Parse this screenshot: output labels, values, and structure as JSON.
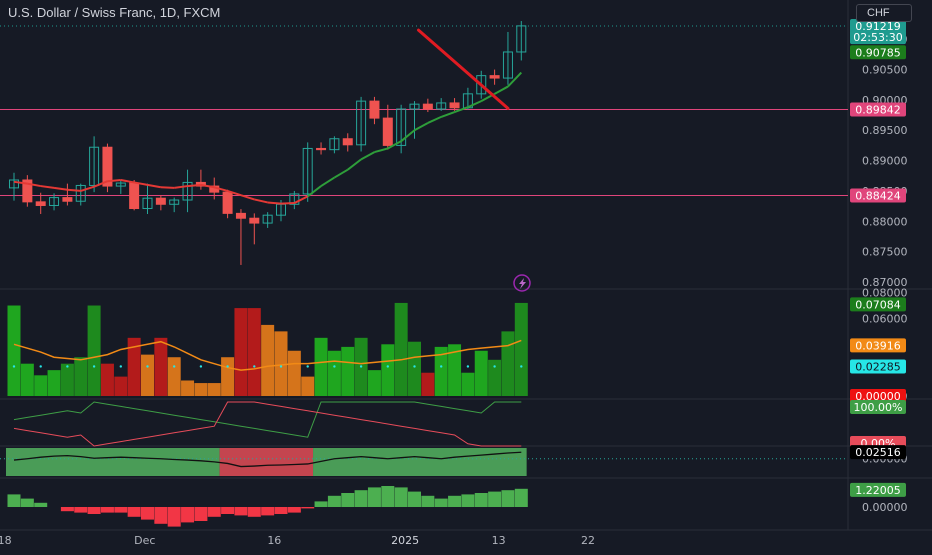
{
  "header": {
    "symbol_title": "U.S. Dollar / Swiss Franc, 1D, FXCM",
    "currency_button": "CHF"
  },
  "colors": {
    "background": "#161a25",
    "up": "#26a69a",
    "down": "#ef5350",
    "ma_red": "#e53935",
    "ma_green": "#2e9e3a",
    "hline": "#e0457b",
    "arrow": "#e01b22",
    "grid_text": "#b2b5be"
  },
  "chart_data": [
    {
      "type": "candlestick",
      "title": "U.S. Dollar / Swiss Franc, 1D, FXCM",
      "y_ticks": [
        "0.87000",
        "0.87500",
        "0.88000",
        "0.88500",
        "0.89000",
        "0.89500",
        "0.90000",
        "0.90500",
        "0.91000"
      ],
      "ylim": [
        0.869,
        0.9135
      ],
      "price_labels": [
        {
          "text": "0.91219",
          "value": 0.91219,
          "color": "#1f9b8f"
        },
        {
          "text": "02:53:30",
          "value": 0.91035,
          "color": "#1f9b8f"
        },
        {
          "text": "0.90785",
          "value": 0.90785,
          "color": "#1c7d1c"
        },
        {
          "text": "0.89842",
          "value": 0.89842,
          "color": "#e0457b"
        },
        {
          "text": "0.88424",
          "value": 0.88424,
          "color": "#e0457b"
        }
      ],
      "horizontal_lines": [
        0.89842,
        0.88424
      ],
      "last_price_line": 0.91219,
      "x_ticks": [
        {
          "label": "18",
          "index": -0.7
        },
        {
          "label": "Dec",
          "index": 9.8
        },
        {
          "label": "16",
          "index": 19.5
        },
        {
          "label": "2025",
          "index": 29.3
        },
        {
          "label": "13",
          "index": 36.3
        },
        {
          "label": "22",
          "index": 43.0
        }
      ],
      "candles": [
        {
          "o": 0.8855,
          "h": 0.888,
          "l": 0.8834,
          "c": 0.8868
        },
        {
          "o": 0.8868,
          "h": 0.8876,
          "l": 0.8824,
          "c": 0.8832
        },
        {
          "o": 0.8832,
          "h": 0.8847,
          "l": 0.8812,
          "c": 0.8826
        },
        {
          "o": 0.8826,
          "h": 0.8846,
          "l": 0.8818,
          "c": 0.8839
        },
        {
          "o": 0.8839,
          "h": 0.8862,
          "l": 0.8826,
          "c": 0.8833
        },
        {
          "o": 0.8833,
          "h": 0.8862,
          "l": 0.8826,
          "c": 0.8859
        },
        {
          "o": 0.8859,
          "h": 0.894,
          "l": 0.8848,
          "c": 0.8922
        },
        {
          "o": 0.8922,
          "h": 0.8928,
          "l": 0.8848,
          "c": 0.8858
        },
        {
          "o": 0.8858,
          "h": 0.8868,
          "l": 0.8845,
          "c": 0.8863
        },
        {
          "o": 0.8863,
          "h": 0.8868,
          "l": 0.8818,
          "c": 0.8821
        },
        {
          "o": 0.8821,
          "h": 0.8862,
          "l": 0.8812,
          "c": 0.8838
        },
        {
          "o": 0.8838,
          "h": 0.8843,
          "l": 0.8818,
          "c": 0.8828
        },
        {
          "o": 0.8828,
          "h": 0.8839,
          "l": 0.8815,
          "c": 0.8835
        },
        {
          "o": 0.8835,
          "h": 0.8885,
          "l": 0.8815,
          "c": 0.8864
        },
        {
          "o": 0.8864,
          "h": 0.8885,
          "l": 0.8852,
          "c": 0.8858
        },
        {
          "o": 0.8858,
          "h": 0.8872,
          "l": 0.8836,
          "c": 0.8848
        },
        {
          "o": 0.8848,
          "h": 0.8852,
          "l": 0.8805,
          "c": 0.8813
        },
        {
          "o": 0.8813,
          "h": 0.882,
          "l": 0.8728,
          "c": 0.8805
        },
        {
          "o": 0.8805,
          "h": 0.8813,
          "l": 0.8762,
          "c": 0.8797
        },
        {
          "o": 0.8797,
          "h": 0.8815,
          "l": 0.8789,
          "c": 0.881
        },
        {
          "o": 0.881,
          "h": 0.8835,
          "l": 0.88,
          "c": 0.8828
        },
        {
          "o": 0.8828,
          "h": 0.885,
          "l": 0.882,
          "c": 0.8845
        },
        {
          "o": 0.8845,
          "h": 0.893,
          "l": 0.8832,
          "c": 0.892
        },
        {
          "o": 0.892,
          "h": 0.893,
          "l": 0.891,
          "c": 0.8918
        },
        {
          "o": 0.8918,
          "h": 0.894,
          "l": 0.8912,
          "c": 0.8936
        },
        {
          "o": 0.8936,
          "h": 0.8945,
          "l": 0.8915,
          "c": 0.8926
        },
        {
          "o": 0.8926,
          "h": 0.9005,
          "l": 0.8915,
          "c": 0.8998
        },
        {
          "o": 0.8998,
          "h": 0.9005,
          "l": 0.896,
          "c": 0.897
        },
        {
          "o": 0.897,
          "h": 0.8992,
          "l": 0.8918,
          "c": 0.8925
        },
        {
          "o": 0.8925,
          "h": 0.8992,
          "l": 0.8912,
          "c": 0.8985
        },
        {
          "o": 0.8985,
          "h": 0.8998,
          "l": 0.8936,
          "c": 0.8993
        },
        {
          "o": 0.8993,
          "h": 0.9002,
          "l": 0.898,
          "c": 0.8985
        },
        {
          "o": 0.8985,
          "h": 0.9003,
          "l": 0.8982,
          "c": 0.8995
        },
        {
          "o": 0.8995,
          "h": 0.9003,
          "l": 0.8982,
          "c": 0.8987
        },
        {
          "o": 0.8987,
          "h": 0.902,
          "l": 0.8984,
          "c": 0.901
        },
        {
          "o": 0.901,
          "h": 0.9048,
          "l": 0.9002,
          "c": 0.904
        },
        {
          "o": 0.904,
          "h": 0.905,
          "l": 0.9025,
          "c": 0.9036
        },
        {
          "o": 0.9036,
          "h": 0.9112,
          "l": 0.9025,
          "c": 0.9079
        },
        {
          "o": 0.9079,
          "h": 0.913,
          "l": 0.9065,
          "c": 0.9122
        }
      ],
      "ma_line": [
        0.8865,
        0.8862,
        0.8858,
        0.8855,
        0.8852,
        0.885,
        0.8857,
        0.8866,
        0.8868,
        0.8864,
        0.886,
        0.8856,
        0.8855,
        0.8858,
        0.886,
        0.8856,
        0.885,
        0.8843,
        0.8836,
        0.8831,
        0.8829,
        0.883,
        0.8841,
        0.8858,
        0.8872,
        0.8885,
        0.8902,
        0.8914,
        0.892,
        0.8932,
        0.895,
        0.8962,
        0.8972,
        0.898,
        0.8988,
        0.8998,
        0.901,
        0.9022,
        0.9045
      ],
      "arrow": {
        "from_index": 30.3,
        "from_value": 0.9115,
        "to_index": 37.0,
        "to_value": 0.8986
      }
    },
    {
      "type": "bar",
      "name": "volatility",
      "y_ticks": [
        "0.08000",
        "0.06000",
        "0.00000"
      ],
      "ylim": [
        0,
        0.082
      ],
      "price_labels": [
        {
          "text": "0.07084",
          "value": 0.07084,
          "color": "#1c7d1c"
        },
        {
          "text": "0.03916",
          "value": 0.03916,
          "color": "#f28a16"
        },
        {
          "text": "0.02285",
          "value": 0.02285,
          "color": "#26e6e6"
        },
        {
          "text": "0.00000",
          "value": 0.0,
          "color": "#ee1111"
        }
      ],
      "values": [
        0.07,
        0.025,
        0.016,
        0.02,
        0.025,
        0.03,
        0.07,
        0.025,
        0.015,
        0.045,
        0.032,
        0.045,
        0.03,
        0.012,
        0.01,
        0.01,
        0.03,
        0.068,
        0.068,
        0.055,
        0.05,
        0.035,
        0.015,
        0.045,
        0.035,
        0.038,
        0.045,
        0.02,
        0.04,
        0.072,
        0.042,
        0.018,
        0.038,
        0.04,
        0.018,
        0.035,
        0.028,
        0.05,
        0.072
      ],
      "bar_colors": [
        "#1fa61f",
        "#1fa61f",
        "#1fa61f",
        "#1fa61f",
        "#1e8a1e",
        "#1e8a1e",
        "#1e8a1e",
        "#b31b1b",
        "#b31b1b",
        "#b31b1b",
        "#d5741b",
        "#b31b1b",
        "#d5741b",
        "#d5741b",
        "#d5741b",
        "#d5741b",
        "#d5741b",
        "#b31b1b",
        "#b31b1b",
        "#d5741b",
        "#d5741b",
        "#d5741b",
        "#d5741b",
        "#1fa61f",
        "#1fa61f",
        "#1fa61f",
        "#1e8a1e",
        "#1fa61f",
        "#1fa61f",
        "#1e8a1e",
        "#1e8a1e",
        "#b31b1b",
        "#1fa61f",
        "#1fa61f",
        "#1fa61f",
        "#1fa61f",
        "#1e8a1e",
        "#1e8a1e",
        "#1e8a1e"
      ],
      "signal_line": [
        0.04,
        0.037,
        0.034,
        0.03,
        0.029,
        0.028,
        0.03,
        0.032,
        0.036,
        0.038,
        0.04,
        0.042,
        0.038,
        0.033,
        0.028,
        0.025,
        0.022,
        0.02,
        0.021,
        0.023,
        0.024,
        0.025,
        0.025,
        0.026,
        0.027,
        0.026,
        0.025,
        0.026,
        0.027,
        0.028,
        0.03,
        0.031,
        0.032,
        0.034,
        0.036,
        0.037,
        0.038,
        0.039,
        0.043
      ],
      "dot_level": 0.02285
    },
    {
      "type": "line",
      "name": "percent oscillator",
      "price_labels": [
        {
          "text": "100.00%",
          "value": 100,
          "color": "#3e9e46"
        },
        {
          "text": "0.00%",
          "value": 0,
          "color": "#e74c5a"
        }
      ],
      "ylim": [
        0,
        100
      ],
      "series": [
        {
          "values": [
            60,
            65,
            70,
            75,
            80,
            75,
            100,
            95,
            90,
            85,
            80,
            75,
            70,
            65,
            60,
            55,
            50,
            45,
            40,
            35,
            30,
            25,
            20,
            100,
            100,
            100,
            100,
            100,
            100,
            100,
            100,
            95,
            90,
            85,
            80,
            75,
            100,
            100,
            100
          ],
          "color": "#3e9e46"
        },
        {
          "values": [
            40,
            35,
            30,
            25,
            20,
            25,
            0,
            5,
            10,
            15,
            20,
            25,
            30,
            35,
            40,
            45,
            100,
            100,
            100,
            95,
            90,
            85,
            80,
            75,
            70,
            65,
            60,
            55,
            50,
            45,
            40,
            35,
            30,
            25,
            5,
            0,
            0,
            0,
            0
          ],
          "color": "#e74c5a"
        }
      ]
    },
    {
      "type": "line",
      "name": "band oscillator",
      "price_labels": [
        {
          "text": "0.02516",
          "value": 0.02516,
          "color": "#000000"
        }
      ],
      "y_ticks": [
        "0.00000"
      ],
      "ylim": [
        -0.07,
        0.045
      ],
      "values": [
        -0.005,
        0.0,
        0.006,
        0.01,
        0.012,
        0.008,
        0.002,
        0.004,
        0.006,
        0.004,
        0.002,
        0.0,
        -0.003,
        -0.005,
        -0.008,
        -0.012,
        -0.018,
        -0.03,
        -0.028,
        -0.025,
        -0.024,
        -0.022,
        -0.02,
        -0.01,
        0.0,
        0.004,
        0.008,
        0.004,
        0.0,
        0.004,
        0.008,
        0.004,
        0.0,
        0.006,
        0.01,
        0.014,
        0.018,
        0.022,
        0.025
      ],
      "bands": [
        {
          "from_index": -0.6,
          "to_index": 15.4,
          "color": "#4a9c57"
        },
        {
          "from_index": 15.4,
          "to_index": 22.4,
          "color": "#c4454f"
        },
        {
          "from_index": 22.4,
          "to_index": 38.4,
          "color": "#4a9c57"
        }
      ]
    },
    {
      "type": "bar",
      "name": "histogram",
      "y_ticks": [
        "0.00000"
      ],
      "ylim": [
        -1.5,
        2.0
      ],
      "price_labels": [
        {
          "text": "1.22005",
          "value": 1.22005,
          "color": "#3e9e46"
        }
      ],
      "values": [
        0.9,
        0.6,
        0.3,
        0.0,
        -0.3,
        -0.4,
        -0.5,
        -0.4,
        -0.4,
        -0.7,
        -0.9,
        -1.2,
        -1.4,
        -1.1,
        -1.0,
        -0.7,
        -0.5,
        -0.6,
        -0.7,
        -0.6,
        -0.5,
        -0.4,
        -0.1,
        0.4,
        0.8,
        1.0,
        1.2,
        1.4,
        1.5,
        1.4,
        1.1,
        0.8,
        0.6,
        0.8,
        0.9,
        1.0,
        1.1,
        1.2,
        1.3
      ],
      "pos_color": "#4caf50",
      "neg_color": "#f23645"
    }
  ]
}
